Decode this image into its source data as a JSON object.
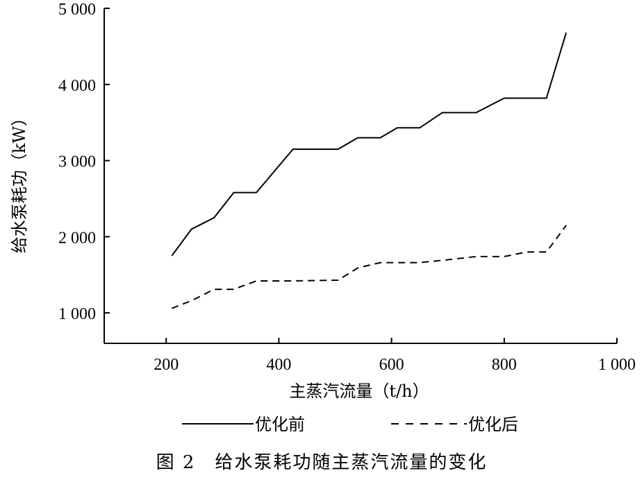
{
  "chart_data": {
    "type": "line",
    "xlabel": "主蒸汽流量（t/h）",
    "ylabel": "给水泵耗功（kW）",
    "xlim": [
      90,
      1000
    ],
    "ylim": [
      600,
      5000
    ],
    "x_ticks": [
      200,
      400,
      600,
      800,
      1000
    ],
    "x_tick_labels": [
      "200",
      "400",
      "600",
      "800",
      "1 000"
    ],
    "y_ticks": [
      1000,
      2000,
      3000,
      4000,
      5000
    ],
    "y_tick_labels": [
      "1 000",
      "2 000",
      "3 000",
      "4 000",
      "5 000"
    ],
    "grid": false,
    "legend_position": "bottom",
    "caption": "图 2　给水泵耗功随主蒸汽流量的变化",
    "series": [
      {
        "name": "优化前",
        "style": "solid",
        "color": "#000000",
        "x": [
          210,
          245,
          285,
          320,
          360,
          425,
          505,
          540,
          580,
          610,
          650,
          690,
          750,
          800,
          875,
          910
        ],
        "y": [
          1750,
          2100,
          2250,
          2580,
          2580,
          3150,
          3150,
          3300,
          3300,
          3430,
          3430,
          3630,
          3630,
          3820,
          3820,
          4680
        ]
      },
      {
        "name": "优化后",
        "style": "dashed",
        "color": "#000000",
        "x": [
          210,
          245,
          285,
          320,
          360,
          425,
          505,
          540,
          580,
          610,
          650,
          690,
          750,
          800,
          840,
          875,
          910
        ],
        "y": [
          1060,
          1160,
          1310,
          1310,
          1420,
          1420,
          1430,
          1590,
          1660,
          1660,
          1660,
          1690,
          1740,
          1740,
          1800,
          1800,
          2150
        ]
      }
    ]
  }
}
